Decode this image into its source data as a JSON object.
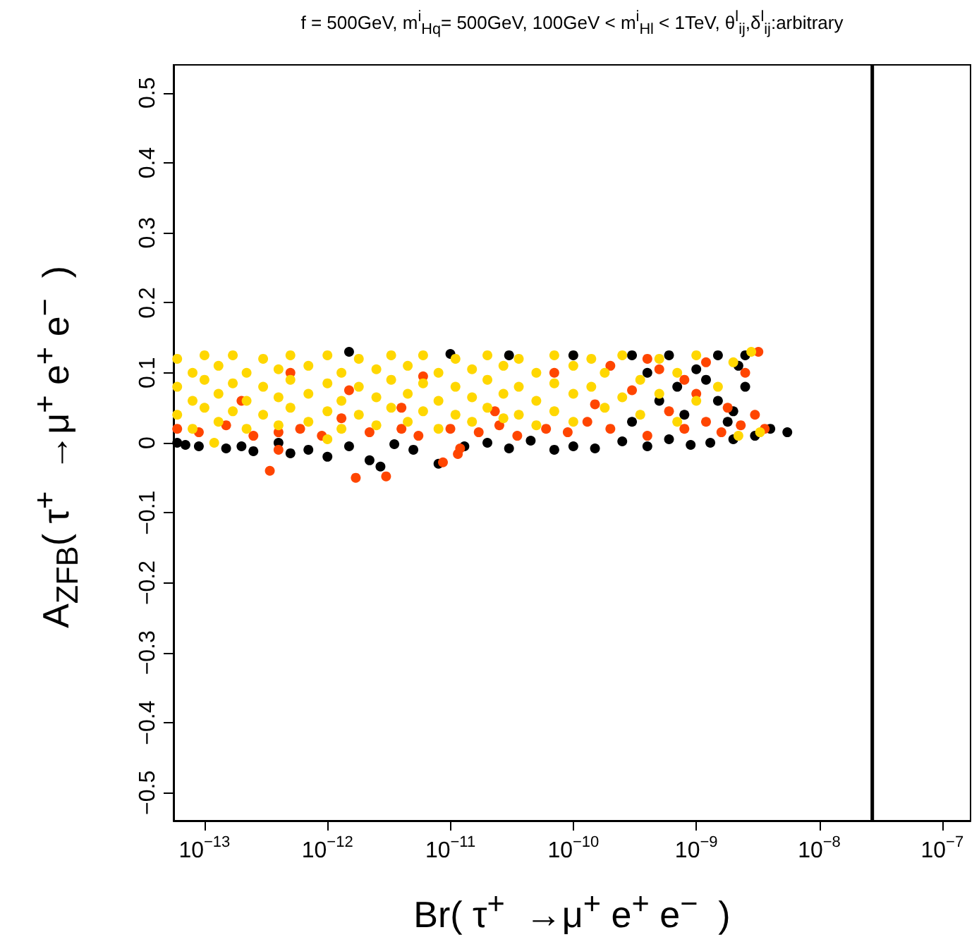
{
  "chart_data": {
    "type": "scatter",
    "title": "f = 500GeV, m$^{i}$$_{Hq}$= 500GeV, 100GeV < m$^{i}$$_{Hl}$ < 1TeV, θ$^{l}$$_{ij}$,δ$^{l}$$_{ij}$:arbitrary",
    "xlabel": "Br( τ$^{+}$  →μ$^{+}$ e$^{+}$ e$^{−}$  )",
    "ylabel": "A$_{ZFB}$( τ$^{+}$  →μ$^{+}$ e$^{+}$ e$^{−}$  )",
    "log": "x",
    "marker": "circle",
    "xlim": [
      5.6e-14,
      1.7e-07
    ],
    "xticks": [
      {
        "value": 1e-13,
        "label": "10$^{−13}$"
      },
      {
        "value": 1e-12,
        "label": "10$^{−12}$"
      },
      {
        "value": 1e-11,
        "label": "10$^{−11}$"
      },
      {
        "value": 1e-10,
        "label": "10$^{−10}$"
      },
      {
        "value": 1e-09,
        "label": "10$^{−9}$"
      },
      {
        "value": 1e-08,
        "label": "10$^{−8}$"
      },
      {
        "value": 1e-07,
        "label": "10$^{−7}$"
      }
    ],
    "ylim": [
      -0.54,
      0.54
    ],
    "yticks": [
      -0.5,
      -0.4,
      -0.3,
      -0.2,
      -0.1,
      0,
      0.1,
      0.2,
      0.3,
      0.4,
      0.5
    ],
    "ref_lines": [
      {
        "axis": "x",
        "value": 2.7e-08,
        "color": "#000000"
      }
    ],
    "series": [
      {
        "color": "#000000",
        "x": [
          6e-14,
          7e-14,
          9e-14,
          1.5e-13,
          2e-13,
          2.5e-13,
          4e-13,
          5e-13,
          7e-13,
          1e-12,
          1.5e-12,
          2.2e-12,
          2.7e-12,
          3.5e-12,
          5e-12,
          8e-12,
          1.3e-11,
          2e-11,
          3e-11,
          4.5e-11,
          7e-11,
          1e-10,
          1.5e-10,
          2.5e-10,
          4e-10,
          6e-10,
          9e-10,
          1.3e-09,
          2e-09,
          3e-09,
          4e-09,
          5.5e-09,
          1.8e-09,
          1.5e-09,
          1.2e-09,
          1e-09,
          1.5e-09,
          2.2e-09,
          2.5e-09,
          8e-10,
          7e-10,
          5e-10,
          4e-10,
          3e-10,
          6e-10,
          2.5e-09,
          2e-09,
          3e-10,
          1e-10,
          3e-11,
          1.5e-12,
          1e-11
        ],
        "values": [
          0,
          -0.003,
          -0.005,
          -0.008,
          -0.005,
          -0.012,
          0,
          -0.015,
          -0.01,
          -0.02,
          -0.005,
          -0.025,
          -0.034,
          -0.002,
          -0.01,
          -0.03,
          -0.005,
          0,
          -0.008,
          0.003,
          -0.01,
          -0.005,
          -0.008,
          0.002,
          -0.005,
          0.005,
          -0.003,
          0,
          0.005,
          0.01,
          0.02,
          0.015,
          0.03,
          0.06,
          0.09,
          0.105,
          0.125,
          0.11,
          0.125,
          0.04,
          0.08,
          0.06,
          0.1,
          0.125,
          0.125,
          0.08,
          0.045,
          0.03,
          0.125,
          0.125,
          0.13,
          0.127
        ]
      },
      {
        "color": "#ff4500",
        "x": [
          6e-14,
          9e-14,
          1.5e-13,
          2.5e-13,
          3.4e-13,
          4e-13,
          6e-13,
          9e-13,
          1.3e-12,
          1.7e-12,
          2.2e-12,
          3e-12,
          4e-12,
          5.5e-12,
          8.7e-12,
          1e-11,
          1.15e-11,
          1.7e-11,
          2.5e-11,
          3.5e-11,
          6e-11,
          9e-11,
          1.3e-10,
          2e-10,
          2e-10,
          3e-10,
          4e-10,
          4e-10,
          6e-10,
          8e-10,
          8e-10,
          1.2e-09,
          1.2e-09,
          1.6e-09,
          1.8e-09,
          2.3e-09,
          2.5e-09,
          3e-09,
          3.2e-09,
          3.6e-09,
          2e-13,
          5e-13,
          1.5e-12,
          6e-12,
          2.3e-11,
          7e-11,
          1.5e-10,
          5e-10,
          1.2e-11,
          4e-13,
          1e-09,
          4e-12
        ],
        "values": [
          0.02,
          0.015,
          0.025,
          0.01,
          -0.04,
          0.015,
          0.02,
          0.01,
          0.035,
          -0.05,
          0.015,
          -0.048,
          0.02,
          0.01,
          -0.028,
          0.02,
          -0.016,
          0.015,
          0.025,
          0.01,
          0.02,
          0.015,
          0.03,
          0.02,
          0.11,
          0.075,
          0.01,
          0.12,
          0.045,
          0.02,
          0.09,
          0.03,
          0.115,
          0.015,
          0.05,
          0.025,
          0.1,
          0.04,
          0.13,
          0.02,
          0.06,
          0.1,
          0.075,
          0.095,
          0.045,
          0.1,
          0.055,
          0.105,
          -0.008,
          -0.01,
          0.07,
          0.05
        ]
      },
      {
        "color": "#ffd700",
        "x": [
          6e-14,
          6e-14,
          6e-14,
          8e-14,
          8e-14,
          8e-14,
          1e-13,
          1e-13,
          1e-13,
          1.3e-13,
          1.3e-13,
          1.3e-13,
          1.7e-13,
          1.7e-13,
          1.7e-13,
          2.2e-13,
          2.2e-13,
          2.2e-13,
          3e-13,
          3e-13,
          3e-13,
          4e-13,
          4e-13,
          4e-13,
          5e-13,
          5e-13,
          5e-13,
          7e-13,
          7e-13,
          7e-13,
          1e-12,
          1e-12,
          1e-12,
          1.3e-12,
          1.3e-12,
          1.3e-12,
          1.8e-12,
          1.8e-12,
          1.8e-12,
          2.5e-12,
          2.5e-12,
          2.5e-12,
          3.3e-12,
          3.3e-12,
          3.3e-12,
          4.5e-12,
          4.5e-12,
          4.5e-12,
          6e-12,
          6e-12,
          6e-12,
          8e-12,
          8e-12,
          8e-12,
          1.1e-11,
          1.1e-11,
          1.1e-11,
          1.5e-11,
          1.5e-11,
          1.5e-11,
          2e-11,
          2e-11,
          2e-11,
          2.7e-11,
          2.7e-11,
          2.7e-11,
          3.6e-11,
          3.6e-11,
          3.6e-11,
          5e-11,
          5e-11,
          5e-11,
          7e-11,
          7e-11,
          7e-11,
          1e-10,
          1e-10,
          1e-10,
          1.4e-10,
          1.4e-10,
          1.8e-10,
          1.8e-10,
          2.5e-10,
          2.5e-10,
          3.5e-10,
          3.5e-10,
          5e-10,
          5e-10,
          7e-10,
          7e-10,
          1e-09,
          1e-09,
          1.5e-09,
          2e-09,
          2.8e-09,
          2.2e-09,
          3.3e-09,
          1.2e-13,
          1e-12
        ],
        "values": [
          0.12,
          0.08,
          0.04,
          0.1,
          0.06,
          0.02,
          0.125,
          0.09,
          0.05,
          0.11,
          0.07,
          0.03,
          0.125,
          0.085,
          0.045,
          0.1,
          0.06,
          0.02,
          0.12,
          0.08,
          0.04,
          0.105,
          0.065,
          0.025,
          0.125,
          0.09,
          0.05,
          0.11,
          0.07,
          0.03,
          0.125,
          0.085,
          0.045,
          0.1,
          0.06,
          0.02,
          0.12,
          0.08,
          0.04,
          0.105,
          0.065,
          0.025,
          0.125,
          0.09,
          0.05,
          0.11,
          0.07,
          0.03,
          0.125,
          0.085,
          0.045,
          0.1,
          0.06,
          0.02,
          0.12,
          0.08,
          0.04,
          0.105,
          0.065,
          0.03,
          0.125,
          0.09,
          0.05,
          0.11,
          0.07,
          0.035,
          0.12,
          0.08,
          0.04,
          0.1,
          0.06,
          0.025,
          0.125,
          0.085,
          0.045,
          0.11,
          0.07,
          0.03,
          0.12,
          0.08,
          0.1,
          0.05,
          0.125,
          0.065,
          0.09,
          0.04,
          0.12,
          0.07,
          0.1,
          0.03,
          0.125,
          0.06,
          0.08,
          0.115,
          0.13,
          0.01,
          0.015,
          0,
          0.005
        ]
      }
    ]
  }
}
